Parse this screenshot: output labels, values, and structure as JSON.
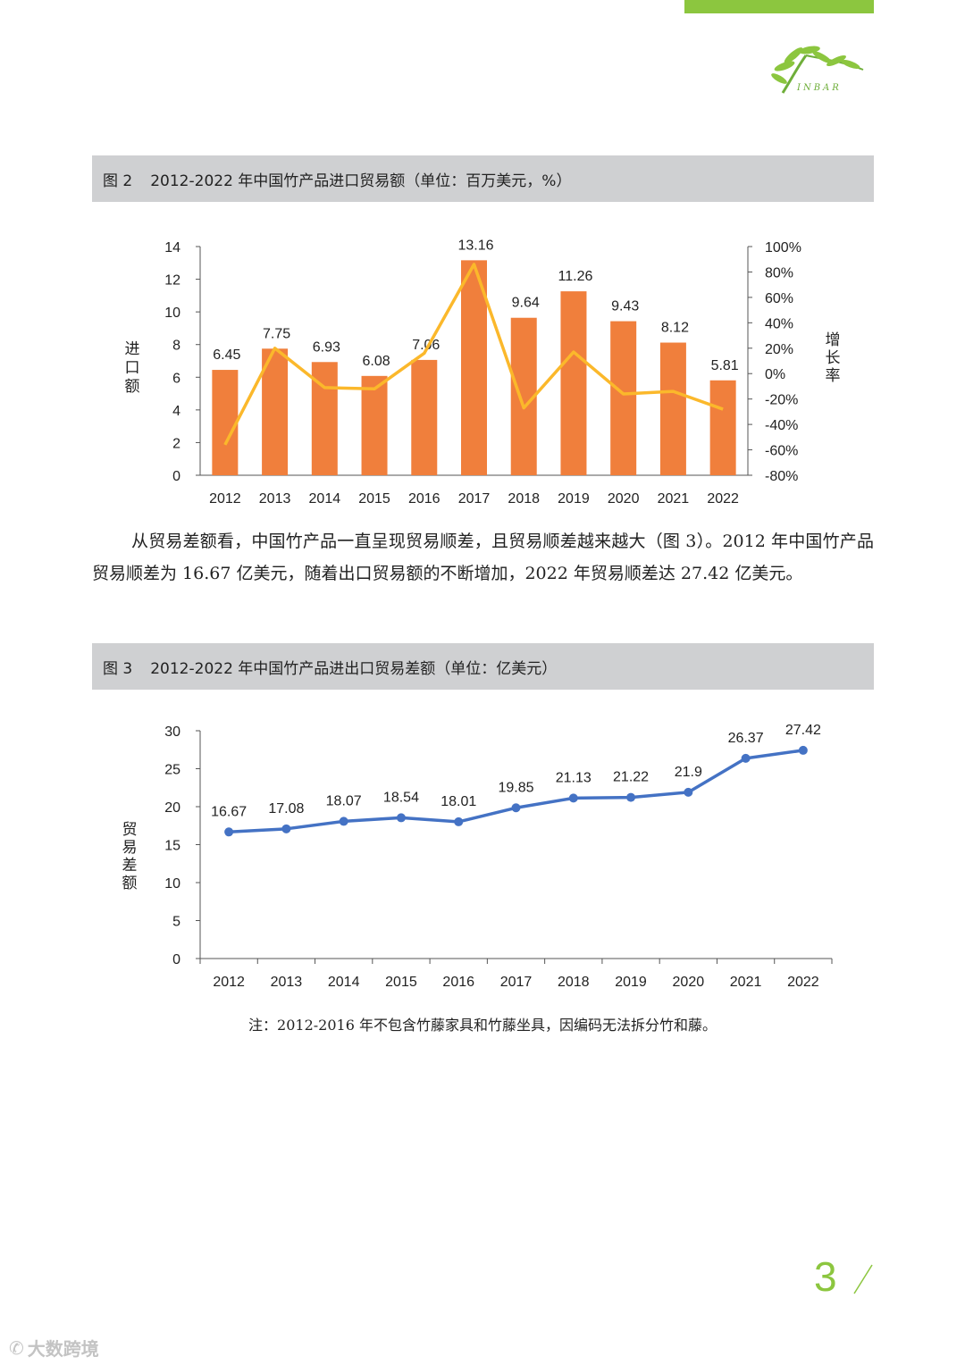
{
  "colors": {
    "accent": "#8cc63f",
    "bar": "#f07f3c",
    "growth_line": "#fbb82b",
    "balance_line": "#4472c4",
    "header_bg": "#cfd0d2"
  },
  "logo": {
    "text": "INBAR"
  },
  "figure2": {
    "number": "图 2",
    "title": "2012-2022 年中国竹产品进口贸易额（单位：百万美元，%）"
  },
  "figure3": {
    "number": "图 3",
    "title": "2012-2022 年中国竹产品进出口贸易差额（单位：亿美元）"
  },
  "paragraph": "从贸易差额看，中国竹产品一直呈现贸易顺差，且贸易顺差越来越大（图 3）。2012 年中国竹产品贸易顺差为 16.67 亿美元，随着出口贸易额的不断增加，2022 年贸易顺差达 27.42 亿美元。",
  "note": "注：2012-2016 年不包含竹藤家具和竹藤坐具，因编码无法拆分竹和藤。",
  "page_number": "3",
  "watermark": "大数跨境",
  "chart_data": [
    {
      "type": "bar",
      "title": "2012-2022 年中国竹产品进口贸易额（单位：百万美元，%）",
      "categories": [
        "2012",
        "2013",
        "2014",
        "2015",
        "2016",
        "2017",
        "2018",
        "2019",
        "2020",
        "2021",
        "2022"
      ],
      "series": [
        {
          "name": "进口额",
          "type": "bar",
          "axis": "left",
          "values": [
            6.45,
            7.75,
            6.93,
            6.08,
            7.06,
            13.16,
            9.64,
            11.26,
            9.43,
            8.12,
            5.81
          ]
        },
        {
          "name": "增长率",
          "type": "line",
          "axis": "right",
          "values": [
            -56,
            20,
            -11,
            -12,
            16,
            86,
            -27,
            17,
            -16,
            -14,
            -28
          ]
        }
      ],
      "value_labels": [
        "6.45",
        "7.75",
        "6.93",
        "6.08",
        "7.06",
        "13.16",
        "9.64",
        "11.26",
        "9.43",
        "8.12",
        "5.81"
      ],
      "ylabel": "进口额",
      "y2label": "增长率",
      "ylim": [
        0,
        14
      ],
      "yticks": [
        "0",
        "2",
        "4",
        "6",
        "8",
        "10",
        "12",
        "14"
      ],
      "y2lim": [
        -80,
        100
      ],
      "y2ticks": [
        "-80%",
        "-60%",
        "-40%",
        "-20%",
        "0%",
        "20%",
        "40%",
        "60%",
        "80%",
        "100%"
      ]
    },
    {
      "type": "line",
      "title": "2012-2022 年中国竹产品进出口贸易差额（单位：亿美元）",
      "categories": [
        "2012",
        "2013",
        "2014",
        "2015",
        "2016",
        "2017",
        "2018",
        "2019",
        "2020",
        "2021",
        "2022"
      ],
      "series": [
        {
          "name": "贸易差额",
          "values": [
            16.67,
            17.08,
            18.07,
            18.54,
            18.01,
            19.85,
            21.13,
            21.22,
            21.9,
            26.37,
            27.42
          ]
        }
      ],
      "value_labels": [
        "16.67",
        "17.08",
        "18.07",
        "18.54",
        "18.01",
        "19.85",
        "21.13",
        "21.22",
        "21.9",
        "26.37",
        "27.42"
      ],
      "ylabel": "贸易差额",
      "ylim": [
        0,
        30
      ],
      "yticks": [
        "0",
        "5",
        "10",
        "15",
        "20",
        "25",
        "30"
      ]
    }
  ]
}
